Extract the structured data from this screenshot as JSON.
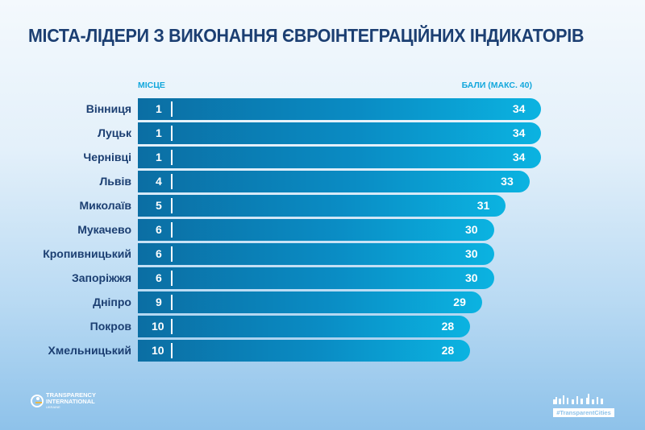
{
  "chart_data": {
    "type": "bar",
    "orientation": "horizontal",
    "title": "МІСТА-ЛІДЕРИ З ВИКОНАННЯ ЄВРОІНТЕГРАЦІЙНИХ ІНДИКАТОРІВ",
    "rank_header": "МІСЦЕ",
    "score_header": "БАЛИ (МАКС. 40)",
    "xlim": [
      0,
      40
    ],
    "categories": [
      "Вінниця",
      "Луцьк",
      "Чернівці",
      "Львів",
      "Миколаїв",
      "Мукачево",
      "Кропивницький",
      "Запоріжжя",
      "Дніпро",
      "Покров",
      "Хмельницький"
    ],
    "ranks": [
      "1",
      "1",
      "1",
      "4",
      "5",
      "6",
      "6",
      "6",
      "9",
      "10",
      "10"
    ],
    "values": [
      34,
      34,
      34,
      33,
      31,
      30,
      30,
      30,
      29,
      28,
      28
    ],
    "colors": {
      "bar_start": "#0b6ea3",
      "bar_end": "#0bb3e1",
      "title": "#1c3f72",
      "header": "#12a7dc"
    }
  },
  "footer": {
    "logo_left": "TRANSPARENCY INTERNATIONAL UKRAINE",
    "logo_right": "#TransparentCities"
  }
}
